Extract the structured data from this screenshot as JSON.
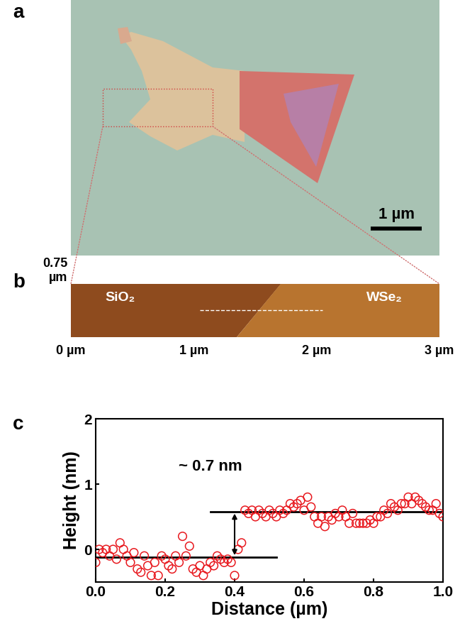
{
  "panel_labels": [
    "a",
    "b",
    "c"
  ],
  "optical_image": {
    "scale_bar": {
      "length": 1,
      "label": "1 µm"
    }
  },
  "afm_image": {
    "xlim": [
      0,
      3
    ],
    "xticks": [
      {
        "value": 0,
        "label": "0 µm"
      },
      {
        "value": 1,
        "label": "1 µm"
      },
      {
        "value": 2,
        "label": "2 µm"
      },
      {
        "value": 3,
        "label": "3 µm"
      }
    ],
    "ylim": [
      0,
      0.75
    ],
    "yticks": [
      {
        "value": 0.75,
        "label": "0.75\nµm"
      }
    ],
    "regions": [
      {
        "label": "SiO₂",
        "x": 0.4,
        "y": 0.55
      },
      {
        "label": "WSe₂",
        "x": 2.55,
        "y": 0.55
      }
    ],
    "profile_line": {
      "x": [
        1.05,
        2.05
      ],
      "y": 0.38
    }
  },
  "chart_data": {
    "type": "scatter",
    "color": "#e8191f",
    "marker": "o",
    "xlabel": "Distance (µm)",
    "ylabel": "Height (nm)",
    "x": [
      0.0,
      0.01,
      0.02,
      0.03,
      0.04,
      0.05,
      0.06,
      0.07,
      0.08,
      0.09,
      0.1,
      0.11,
      0.12,
      0.13,
      0.14,
      0.15,
      0.16,
      0.17,
      0.18,
      0.19,
      0.2,
      0.21,
      0.22,
      0.23,
      0.24,
      0.25,
      0.26,
      0.27,
      0.28,
      0.29,
      0.3,
      0.31,
      0.32,
      0.33,
      0.34,
      0.35,
      0.36,
      0.37,
      0.38,
      0.39,
      0.4,
      0.41,
      0.42,
      0.43,
      0.44,
      0.45,
      0.46,
      0.47,
      0.48,
      0.49,
      0.5,
      0.51,
      0.52,
      0.53,
      0.54,
      0.55,
      0.56,
      0.57,
      0.58,
      0.59,
      0.6,
      0.61,
      0.62,
      0.63,
      0.64,
      0.65,
      0.66,
      0.67,
      0.68,
      0.69,
      0.7,
      0.71,
      0.72,
      0.73,
      0.74,
      0.75,
      0.76,
      0.77,
      0.78,
      0.79,
      0.8,
      0.81,
      0.82,
      0.83,
      0.84,
      0.85,
      0.86,
      0.87,
      0.88,
      0.89,
      0.9,
      0.91,
      0.92,
      0.93,
      0.94,
      0.95,
      0.96,
      0.97,
      0.98,
      0.99,
      1.0
    ],
    "values": [
      -0.2,
      0.0,
      -0.05,
      0.0,
      -0.1,
      0.0,
      -0.15,
      0.1,
      0.0,
      -0.1,
      -0.2,
      -0.05,
      -0.3,
      -0.35,
      -0.1,
      -0.25,
      -0.4,
      -0.2,
      -0.4,
      -0.1,
      -0.15,
      -0.25,
      -0.3,
      -0.1,
      -0.2,
      0.2,
      -0.1,
      0.05,
      -0.3,
      -0.35,
      -0.25,
      -0.4,
      -0.3,
      -0.2,
      -0.25,
      -0.1,
      -0.15,
      -0.2,
      -0.15,
      -0.2,
      -0.4,
      0.0,
      0.1,
      0.6,
      0.55,
      0.6,
      0.5,
      0.6,
      0.55,
      0.5,
      0.6,
      0.55,
      0.5,
      0.6,
      0.55,
      0.6,
      0.7,
      0.65,
      0.7,
      0.75,
      0.6,
      0.8,
      0.65,
      0.5,
      0.4,
      0.5,
      0.35,
      0.5,
      0.45,
      0.55,
      0.5,
      0.6,
      0.5,
      0.4,
      0.55,
      0.4,
      0.4,
      0.4,
      0.4,
      0.45,
      0.4,
      0.5,
      0.5,
      0.6,
      0.55,
      0.7,
      0.65,
      0.6,
      0.7,
      0.7,
      0.8,
      0.7,
      0.8,
      0.75,
      0.7,
      0.65,
      0.6,
      0.6,
      0.7,
      0.55,
      0.5
    ],
    "xlim": [
      0,
      1.0
    ],
    "xticks": [
      {
        "value": 0.0,
        "label": "0.0"
      },
      {
        "value": 0.2,
        "label": "0.2"
      },
      {
        "value": 0.4,
        "label": "0.4"
      },
      {
        "value": 0.6,
        "label": "0.6"
      },
      {
        "value": 0.8,
        "label": "0.8"
      },
      {
        "value": 1.0,
        "label": "1.0"
      }
    ],
    "ylim": [
      -0.5,
      2
    ],
    "yticks": [
      0,
      1,
      2
    ],
    "levels": [
      {
        "y": -0.12,
        "x": [
          0.0,
          0.52
        ]
      },
      {
        "y": 0.58,
        "x": [
          0.33,
          1.0
        ]
      }
    ],
    "annotation": {
      "text": "~ 0.7 nm",
      "x": 0.33,
      "y": 1.15,
      "arrow_x": 0.4
    }
  }
}
